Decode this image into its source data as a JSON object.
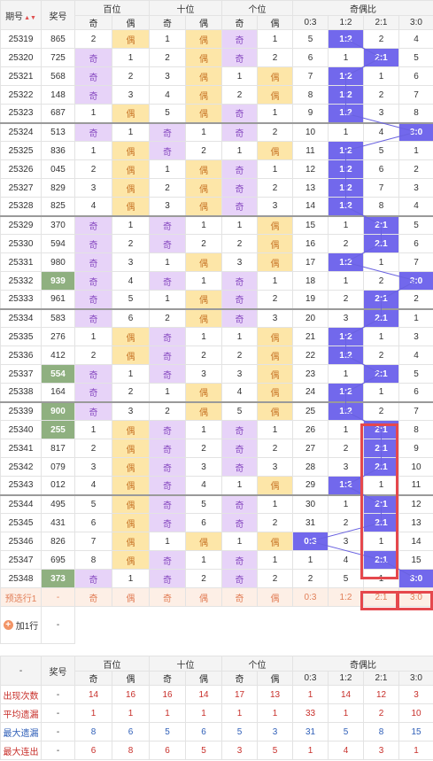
{
  "header": {
    "period": "期号",
    "draw": "奖号",
    "hundreds": "百位",
    "tens": "十位",
    "units": "个位",
    "ratio": "奇偶比",
    "odd": "奇",
    "even": "偶",
    "r03": "0:3",
    "r12": "1:2",
    "r21": "2:1",
    "r30": "3:0",
    "sort_icon": "sort-caret"
  },
  "rows": [
    {
      "p": "25319",
      "n": "865",
      "h": [
        "2",
        "偶"
      ],
      "t": [
        "1",
        "偶"
      ],
      "u": [
        "奇",
        "1"
      ],
      "r": [
        "5",
        "1:2",
        "2",
        "4"
      ],
      "hl": 1,
      "gb": 0,
      "gn": 0
    },
    {
      "p": "25320",
      "n": "725",
      "h": [
        "奇",
        "1"
      ],
      "t": [
        "2",
        "偶"
      ],
      "u": [
        "奇",
        "2"
      ],
      "r": [
        "6",
        "1",
        "2:1",
        "5"
      ],
      "hl": 2,
      "gb": 0,
      "gn": 0
    },
    {
      "p": "25321",
      "n": "568",
      "h": [
        "奇",
        "2"
      ],
      "t": [
        "3",
        "偶"
      ],
      "u": [
        "1",
        "偶"
      ],
      "r": [
        "7",
        "1:2",
        "1",
        "6"
      ],
      "hl": 1,
      "gb": 0,
      "gn": 0
    },
    {
      "p": "25322",
      "n": "148",
      "h": [
        "奇",
        "3"
      ],
      "t": [
        "4",
        "偶"
      ],
      "u": [
        "2",
        "偶"
      ],
      "r": [
        "8",
        "1:2",
        "2",
        "7"
      ],
      "hl": 1,
      "gb": 0,
      "gn": 0
    },
    {
      "p": "25323",
      "n": "687",
      "h": [
        "1",
        "偶"
      ],
      "t": [
        "5",
        "偶"
      ],
      "u": [
        "奇",
        "1"
      ],
      "r": [
        "9",
        "1:2",
        "3",
        "8"
      ],
      "hl": 1,
      "gb": 1,
      "gn": 0
    },
    {
      "p": "25324",
      "n": "513",
      "h": [
        "奇",
        "1"
      ],
      "t": [
        "奇",
        "1"
      ],
      "u": [
        "奇",
        "2"
      ],
      "r": [
        "10",
        "1",
        "4",
        "3:0"
      ],
      "hl": 3,
      "gb": 0,
      "gn": 0
    },
    {
      "p": "25325",
      "n": "836",
      "h": [
        "1",
        "偶"
      ],
      "t": [
        "奇",
        "2"
      ],
      "u": [
        "1",
        "偶"
      ],
      "r": [
        "11",
        "1:2",
        "5",
        "1"
      ],
      "hl": 1,
      "gb": 0,
      "gn": 0
    },
    {
      "p": "25326",
      "n": "045",
      "h": [
        "2",
        "偶"
      ],
      "t": [
        "1",
        "偶"
      ],
      "u": [
        "奇",
        "1"
      ],
      "r": [
        "12",
        "1:2",
        "6",
        "2"
      ],
      "hl": 1,
      "gb": 0,
      "gn": 0
    },
    {
      "p": "25327",
      "n": "829",
      "h": [
        "3",
        "偶"
      ],
      "t": [
        "2",
        "偶"
      ],
      "u": [
        "奇",
        "2"
      ],
      "r": [
        "13",
        "1:2",
        "7",
        "3"
      ],
      "hl": 1,
      "gb": 0,
      "gn": 0
    },
    {
      "p": "25328",
      "n": "825",
      "h": [
        "4",
        "偶"
      ],
      "t": [
        "3",
        "偶"
      ],
      "u": [
        "奇",
        "3"
      ],
      "r": [
        "14",
        "1:2",
        "8",
        "4"
      ],
      "hl": 1,
      "gb": 1,
      "gn": 0
    },
    {
      "p": "25329",
      "n": "370",
      "h": [
        "奇",
        "1"
      ],
      "t": [
        "奇",
        "1"
      ],
      "u": [
        "1",
        "偶"
      ],
      "r": [
        "15",
        "1",
        "2:1",
        "5"
      ],
      "hl": 2,
      "gb": 0,
      "gn": 0
    },
    {
      "p": "25330",
      "n": "594",
      "h": [
        "奇",
        "2"
      ],
      "t": [
        "奇",
        "2"
      ],
      "u": [
        "2",
        "偶"
      ],
      "r": [
        "16",
        "2",
        "2:1",
        "6"
      ],
      "hl": 2,
      "gb": 0,
      "gn": 0
    },
    {
      "p": "25331",
      "n": "980",
      "h": [
        "奇",
        "3"
      ],
      "t": [
        "1",
        "偶"
      ],
      "u": [
        "3",
        "偶"
      ],
      "r": [
        "17",
        "1:2",
        "1",
        "7"
      ],
      "hl": 1,
      "gb": 0,
      "gn": 0
    },
    {
      "p": "25332",
      "n": "939",
      "h": [
        "奇",
        "4"
      ],
      "t": [
        "奇",
        "1"
      ],
      "u": [
        "奇",
        "1"
      ],
      "r": [
        "18",
        "1",
        "2",
        "3:0"
      ],
      "hl": 3,
      "gb": 0,
      "gn": 1
    },
    {
      "p": "25333",
      "n": "961",
      "h": [
        "奇",
        "5"
      ],
      "t": [
        "1",
        "偶"
      ],
      "u": [
        "奇",
        "2"
      ],
      "r": [
        "19",
        "2",
        "2:1",
        "2"
      ],
      "hl": 2,
      "gb": 1,
      "gn": 0
    },
    {
      "p": "25334",
      "n": "583",
      "h": [
        "奇",
        "6"
      ],
      "t": [
        "2",
        "偶"
      ],
      "u": [
        "奇",
        "3"
      ],
      "r": [
        "20",
        "3",
        "2:1",
        "1"
      ],
      "hl": 2,
      "gb": 0,
      "gn": 0
    },
    {
      "p": "25335",
      "n": "276",
      "h": [
        "1",
        "偶"
      ],
      "t": [
        "奇",
        "1"
      ],
      "u": [
        "1",
        "偶"
      ],
      "r": [
        "21",
        "1:2",
        "1",
        "3"
      ],
      "hl": 1,
      "gb": 0,
      "gn": 0
    },
    {
      "p": "25336",
      "n": "412",
      "h": [
        "2",
        "偶"
      ],
      "t": [
        "奇",
        "2"
      ],
      "u": [
        "2",
        "偶"
      ],
      "r": [
        "22",
        "1:2",
        "2",
        "4"
      ],
      "hl": 1,
      "gb": 0,
      "gn": 0
    },
    {
      "p": "25337",
      "n": "554",
      "h": [
        "奇",
        "1"
      ],
      "t": [
        "奇",
        "3"
      ],
      "u": [
        "3",
        "偶"
      ],
      "r": [
        "23",
        "1",
        "2:1",
        "5"
      ],
      "hl": 2,
      "gb": 0,
      "gn": 1
    },
    {
      "p": "25338",
      "n": "164",
      "h": [
        "奇",
        "2"
      ],
      "t": [
        "1",
        "偶"
      ],
      "u": [
        "4",
        "偶"
      ],
      "r": [
        "24",
        "1:2",
        "1",
        "6"
      ],
      "hl": 1,
      "gb": 1,
      "gn": 0
    },
    {
      "p": "25339",
      "n": "900",
      "h": [
        "奇",
        "3"
      ],
      "t": [
        "2",
        "偶"
      ],
      "u": [
        "5",
        "偶"
      ],
      "r": [
        "25",
        "1:2",
        "2",
        "7"
      ],
      "hl": 1,
      "gb": 0,
      "gn": 1
    },
    {
      "p": "25340",
      "n": "255",
      "h": [
        "1",
        "偶"
      ],
      "t": [
        "奇",
        "1"
      ],
      "u": [
        "奇",
        "1"
      ],
      "r": [
        "26",
        "1",
        "2:1",
        "8"
      ],
      "hl": 2,
      "gb": 0,
      "gn": 1
    },
    {
      "p": "25341",
      "n": "817",
      "h": [
        "2",
        "偶"
      ],
      "t": [
        "奇",
        "2"
      ],
      "u": [
        "奇",
        "2"
      ],
      "r": [
        "27",
        "2",
        "2:1",
        "9"
      ],
      "hl": 2,
      "gb": 0,
      "gn": 0
    },
    {
      "p": "25342",
      "n": "079",
      "h": [
        "3",
        "偶"
      ],
      "t": [
        "奇",
        "3"
      ],
      "u": [
        "奇",
        "3"
      ],
      "r": [
        "28",
        "3",
        "2:1",
        "10"
      ],
      "hl": 2,
      "gb": 0,
      "gn": 0
    },
    {
      "p": "25343",
      "n": "012",
      "h": [
        "4",
        "偶"
      ],
      "t": [
        "奇",
        "4"
      ],
      "u": [
        "1",
        "偶"
      ],
      "r": [
        "29",
        "1:2",
        "1",
        "11"
      ],
      "hl": 1,
      "gb": 1,
      "gn": 0
    },
    {
      "p": "25344",
      "n": "495",
      "h": [
        "5",
        "偶"
      ],
      "t": [
        "奇",
        "5"
      ],
      "u": [
        "奇",
        "1"
      ],
      "r": [
        "30",
        "1",
        "2:1",
        "12"
      ],
      "hl": 2,
      "gb": 0,
      "gn": 0
    },
    {
      "p": "25345",
      "n": "431",
      "h": [
        "6",
        "偶"
      ],
      "t": [
        "奇",
        "6"
      ],
      "u": [
        "奇",
        "2"
      ],
      "r": [
        "31",
        "2",
        "2:1",
        "13"
      ],
      "hl": 2,
      "gb": 0,
      "gn": 0
    },
    {
      "p": "25346",
      "n": "826",
      "h": [
        "7",
        "偶"
      ],
      "t": [
        "1",
        "偶"
      ],
      "u": [
        "1",
        "偶"
      ],
      "r": [
        "0:3",
        "3",
        "1",
        "14"
      ],
      "hl": 0,
      "gb": 0,
      "gn": 0
    },
    {
      "p": "25347",
      "n": "695",
      "h": [
        "8",
        "偶"
      ],
      "t": [
        "奇",
        "1"
      ],
      "u": [
        "奇",
        "1"
      ],
      "r": [
        "1",
        "4",
        "2:1",
        "15"
      ],
      "hl": 2,
      "gb": 0,
      "gn": 0
    },
    {
      "p": "25348",
      "n": "373",
      "h": [
        "奇",
        "1"
      ],
      "t": [
        "奇",
        "2"
      ],
      "u": [
        "奇",
        "2"
      ],
      "r": [
        "2",
        "5",
        "1",
        "3:0"
      ],
      "hl": 3,
      "gb": 0,
      "gn": 1
    }
  ],
  "preview": {
    "label": "预选行1",
    "draw": "-",
    "cells": [
      "奇",
      "偶",
      "奇",
      "偶",
      "奇",
      "偶",
      "0:3",
      "1:2",
      "2:1",
      "3:0"
    ]
  },
  "add_row": {
    "label": "加1行",
    "icon": "plus-circle-icon",
    "value": "-"
  },
  "footer_header": {
    "dash": "-",
    "draw": "奖号"
  },
  "stats": [
    {
      "label": "出现次数",
      "vals": [
        "-",
        "14",
        "16",
        "16",
        "14",
        "17",
        "13",
        "1",
        "14",
        "12",
        "3"
      ],
      "cls": "red"
    },
    {
      "label": "平均遗漏",
      "vals": [
        "-",
        "1",
        "1",
        "1",
        "1",
        "1",
        "1",
        "33",
        "1",
        "2",
        "10"
      ],
      "cls": "red"
    },
    {
      "label": "最大遗漏",
      "vals": [
        "-",
        "8",
        "6",
        "5",
        "6",
        "5",
        "3",
        "31",
        "5",
        "8",
        "15"
      ],
      "cls": "blue"
    },
    {
      "label": "最大连出",
      "vals": [
        "-",
        "6",
        "8",
        "6",
        "5",
        "3",
        "5",
        "1",
        "4",
        "3",
        "1"
      ],
      "cls": "red"
    }
  ],
  "colors": {
    "accent": "#7268ec",
    "odd_bg": "#e7d3f8",
    "even_bg": "#fde6a8",
    "highlight_box": "#e5484d",
    "repeat_bg": "#8fb080"
  }
}
